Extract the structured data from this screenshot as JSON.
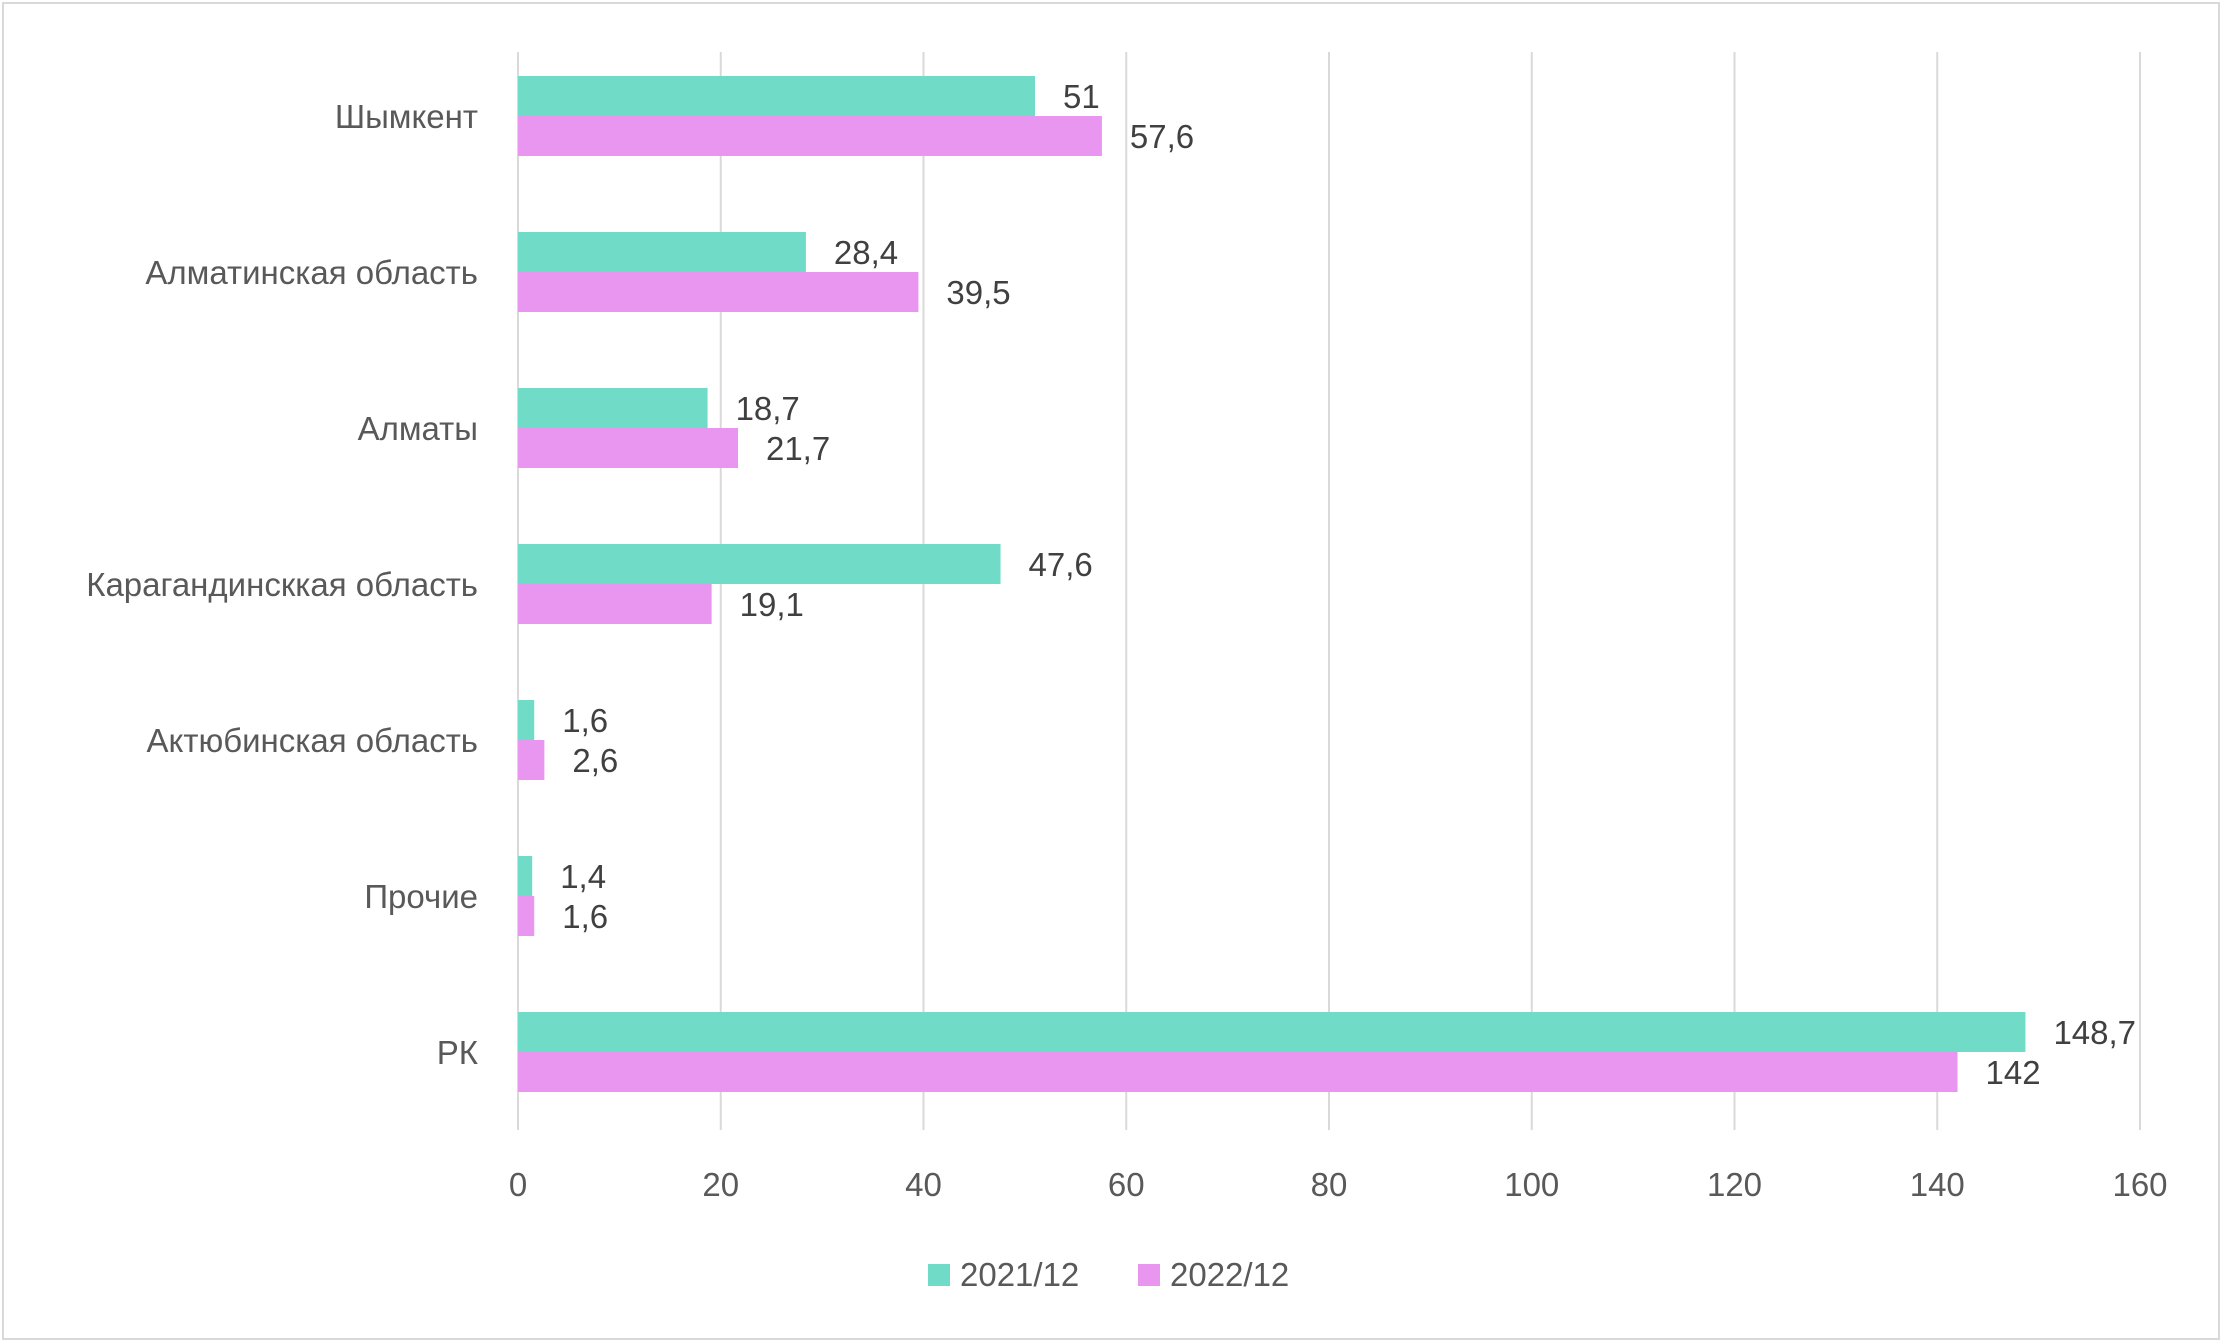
{
  "chart_data": {
    "type": "bar",
    "orientation": "horizontal",
    "categories": [
      "Шымкент",
      "Алматинская область",
      "Алматы",
      "Карагандинсккая область",
      "Актюбинская область",
      "Прочие",
      "РК"
    ],
    "series": [
      {
        "name": "2021/12",
        "color": "#70dbc6",
        "values": [
          51,
          28.4,
          18.7,
          47.6,
          1.6,
          1.4,
          148.7
        ],
        "labels": [
          "51",
          "28,4",
          "18,7",
          "47,6",
          "1,6",
          "1,4",
          "148,7"
        ]
      },
      {
        "name": "2022/12",
        "color": "#e896ef",
        "values": [
          57.6,
          39.5,
          21.7,
          19.1,
          2.6,
          1.6,
          142
        ],
        "labels": [
          "57,6",
          "39,5",
          "21,7",
          "19,1",
          "2,6",
          "1,6",
          "142"
        ]
      }
    ],
    "xlim": [
      0,
      160
    ],
    "xticks": [
      "0",
      "20",
      "40",
      "60",
      "80",
      "100",
      "120",
      "140",
      "160"
    ],
    "grid": "vertical",
    "legend_position": "bottom",
    "title": "",
    "xlabel": "",
    "ylabel": ""
  }
}
